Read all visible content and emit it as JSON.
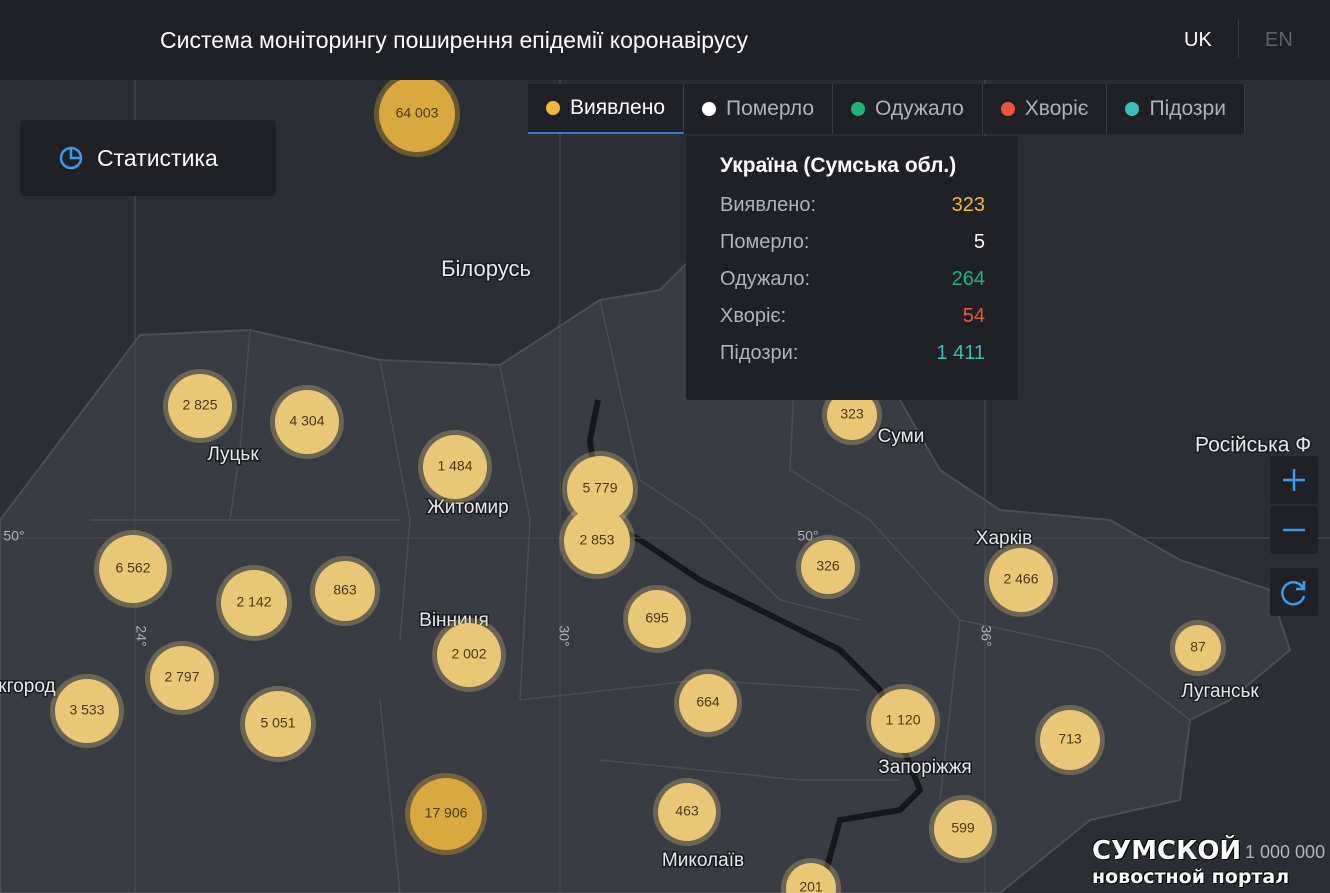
{
  "header": {
    "title": "Система моніторингу поширення епідемії коронавірусу",
    "languages": [
      "UK",
      "EN"
    ]
  },
  "tabs": [
    {
      "label": "Виявлено",
      "color": "#f0b73a"
    },
    {
      "label": "Померло",
      "color": "#ffffff"
    },
    {
      "label": "Одужало",
      "color": "#1fb37a"
    },
    {
      "label": "Хворіє",
      "color": "#e8553e"
    },
    {
      "label": "Підозри",
      "color": "#3bbdb8"
    }
  ],
  "stats_button": "Статистика",
  "tooltip": {
    "title": "Україна (Сумська обл.)",
    "rows": [
      {
        "label": "Виявлено:",
        "value": "323",
        "color": "#f0b73a"
      },
      {
        "label": "Померло:",
        "value": "5",
        "color": "#ffffff"
      },
      {
        "label": "Одужало:",
        "value": "264",
        "color": "#1fb37a"
      },
      {
        "label": "Хворіє:",
        "value": "54",
        "color": "#e8553e"
      },
      {
        "label": "Підозри:",
        "value": "1 411",
        "color": "#3bbdb8"
      }
    ]
  },
  "places": [
    "Білорусь",
    "Луцьк",
    "Житомир",
    "Вінниця",
    "Суми",
    "Харків",
    "Луганськ",
    "Запоріжжя",
    "Миколаїв",
    "Російська Ф",
    "жгород"
  ],
  "graticule": [
    "50°",
    "50°",
    "24°",
    "30°",
    "36°"
  ],
  "markers": [
    "64 003",
    "2 825",
    "4 304",
    "1 484",
    "5 779",
    "2 853",
    "6 562",
    "2 142",
    "863",
    "2 797",
    "3 533",
    "5 051",
    "2 002",
    "695",
    "664",
    "17 906",
    "463",
    "323",
    "326",
    "2 466",
    "87",
    "1 120",
    "713",
    "599",
    "201"
  ],
  "watermark": {
    "title": "СУМСКОЙ",
    "subtitle": "новостной портал",
    "scale": "1 000 000"
  }
}
